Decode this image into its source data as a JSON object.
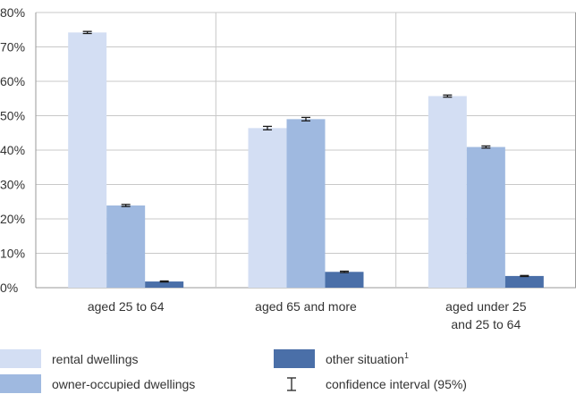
{
  "chart_data": {
    "type": "bar",
    "title": "",
    "xlabel": "",
    "ylabel": "",
    "ylim": [
      0,
      80
    ],
    "y_ticks": [
      "0%",
      "10%",
      "20%",
      "30%",
      "40%",
      "50%",
      "60%",
      "70%",
      "80%"
    ],
    "grid": true,
    "categories": [
      [
        "aged 25 to 64"
      ],
      [
        "aged 65 and more"
      ],
      [
        "aged under 25",
        "and 25 to 64"
      ]
    ],
    "series": [
      {
        "name": "rental dwellings",
        "color": "#d3def3",
        "values": [
          74.2,
          46.4,
          55.7
        ],
        "ci": [
          0.3,
          0.5,
          0.3
        ]
      },
      {
        "name": "owner-occupied dwellings",
        "color": "#9fb9e0",
        "values": [
          23.9,
          49.0,
          40.9
        ],
        "ci": [
          0.3,
          0.5,
          0.3
        ]
      },
      {
        "name": "other situation",
        "name_sup": "1",
        "color": "#4a6fa8",
        "values": [
          1.8,
          4.6,
          3.4
        ],
        "ci": [
          0.15,
          0.2,
          0.15
        ]
      }
    ],
    "legend": {
      "placement": "bottom",
      "ci_label": "confidence interval (95%)"
    }
  }
}
